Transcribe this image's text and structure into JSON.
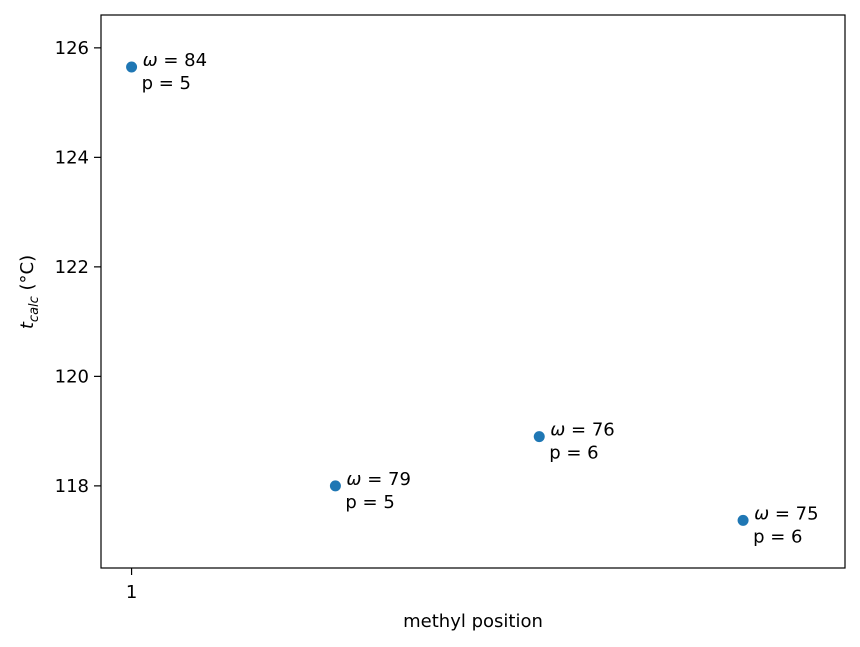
{
  "chart_data": {
    "type": "scatter",
    "xlabel": "methyl position",
    "ylabel_main": "t",
    "ylabel_sub": "calc",
    "ylabel_unit": " (°C)",
    "xlim": [
      0.85,
      4.5
    ],
    "ylim": [
      116.5,
      126.6
    ],
    "xticks": [
      1
    ],
    "xtick_labels": [
      "1"
    ],
    "yticks": [
      118,
      120,
      122,
      124,
      126
    ],
    "ytick_labels": [
      "118",
      "120",
      "122",
      "124",
      "126"
    ],
    "grid": false,
    "marker_color": "#1f77b4",
    "points": [
      {
        "x": 1,
        "y": 125.65,
        "omega": "ω = 84",
        "p": "p = 5"
      },
      {
        "x": 2,
        "y": 118.0,
        "omega": "ω = 79",
        "p": "p = 5"
      },
      {
        "x": 3,
        "y": 118.9,
        "omega": "ω = 76",
        "p": "p = 6"
      },
      {
        "x": 4,
        "y": 117.37,
        "omega": "ω = 75",
        "p": "p = 6"
      }
    ]
  }
}
